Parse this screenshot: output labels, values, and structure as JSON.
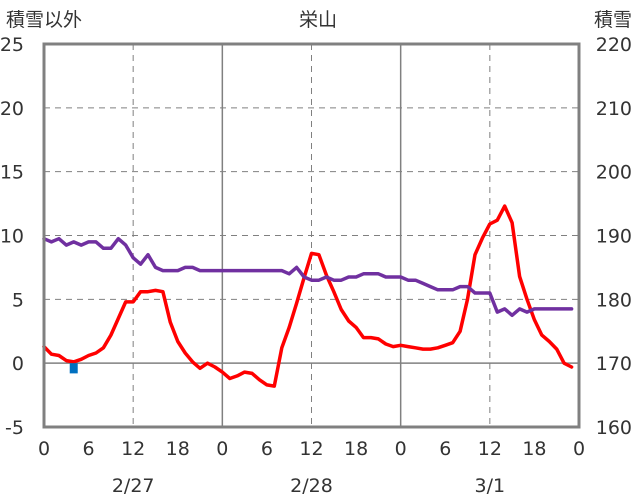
{
  "chart_data": {
    "type": "line",
    "title": "栄山",
    "y_left_label": "積雪以外",
    "y_right_label": "積雪",
    "y_left_range": [
      -5,
      25
    ],
    "y_left_ticks": [
      "25",
      "20",
      "15",
      "10",
      "5",
      "0",
      "-5"
    ],
    "y_right_range": [
      160,
      220
    ],
    "y_right_ticks": [
      "220",
      "210",
      "200",
      "190",
      "180",
      "170",
      "160"
    ],
    "x_range": [
      0,
      72
    ],
    "x_tick_labels": [
      "0",
      "6",
      "12",
      "18",
      "0",
      "6",
      "12",
      "18",
      "0",
      "6",
      "12",
      "18",
      "0"
    ],
    "date_labels": [
      "2/27",
      "2/28",
      "3/1"
    ],
    "grid": true,
    "colors": {
      "temperature": "#ff0000",
      "snow_depth": "#7030a0",
      "precipitation": "#0070c0",
      "frame": "#808080"
    },
    "series": [
      {
        "axis": "left",
        "color": "#ff0000",
        "points": [
          [
            0,
            1.3
          ],
          [
            1,
            0.7
          ],
          [
            2,
            0.6
          ],
          [
            3,
            0.2
          ],
          [
            4,
            0.1
          ],
          [
            5,
            0.3
          ],
          [
            6,
            0.6
          ],
          [
            7,
            0.8
          ],
          [
            8,
            1.2
          ],
          [
            9,
            2.2
          ],
          [
            10,
            3.5
          ],
          [
            11,
            4.8
          ],
          [
            12,
            4.8
          ],
          [
            13,
            5.6
          ],
          [
            14,
            5.6
          ],
          [
            15,
            5.7
          ],
          [
            16,
            5.6
          ],
          [
            17,
            3.2
          ],
          [
            18,
            1.7
          ],
          [
            19,
            0.8
          ],
          [
            20,
            0.1
          ],
          [
            21,
            -0.4
          ],
          [
            22,
            0.0
          ],
          [
            23,
            -0.3
          ],
          [
            24,
            -0.7
          ],
          [
            25,
            -1.2
          ],
          [
            26,
            -1.0
          ],
          [
            27,
            -0.7
          ],
          [
            28,
            -0.8
          ],
          [
            29,
            -1.3
          ],
          [
            30,
            -1.7
          ],
          [
            31,
            -1.8
          ],
          [
            32,
            1.2
          ],
          [
            33,
            2.8
          ],
          [
            34,
            4.7
          ],
          [
            35,
            6.7
          ],
          [
            36,
            8.6
          ],
          [
            37,
            8.5
          ],
          [
            38,
            6.9
          ],
          [
            39,
            5.6
          ],
          [
            40,
            4.2
          ],
          [
            41,
            3.3
          ],
          [
            42,
            2.8
          ],
          [
            43,
            2.0
          ],
          [
            44,
            2.0
          ],
          [
            45,
            1.9
          ],
          [
            46,
            1.5
          ],
          [
            47,
            1.3
          ],
          [
            48,
            1.4
          ],
          [
            49,
            1.3
          ],
          [
            50,
            1.2
          ],
          [
            51,
            1.1
          ],
          [
            52,
            1.1
          ],
          [
            53,
            1.2
          ],
          [
            54,
            1.4
          ],
          [
            55,
            1.6
          ],
          [
            56,
            2.5
          ],
          [
            57,
            5.0
          ],
          [
            58,
            8.5
          ],
          [
            59,
            9.8
          ],
          [
            60,
            10.9
          ],
          [
            61,
            11.2
          ],
          [
            62,
            12.3
          ],
          [
            63,
            11.0
          ],
          [
            64,
            6.8
          ],
          [
            65,
            5.0
          ],
          [
            66,
            3.4
          ],
          [
            67,
            2.2
          ],
          [
            68,
            1.7
          ],
          [
            69,
            1.1
          ],
          [
            70,
            0.0
          ],
          [
            71,
            -0.3
          ]
        ]
      },
      {
        "axis": "right",
        "color": "#7030a0",
        "points": [
          [
            0,
            189.5
          ],
          [
            1,
            189
          ],
          [
            2,
            189.5
          ],
          [
            3,
            188.5
          ],
          [
            4,
            189
          ],
          [
            5,
            188.5
          ],
          [
            6,
            189
          ],
          [
            7,
            189
          ],
          [
            8,
            188
          ],
          [
            9,
            188
          ],
          [
            10,
            189.5
          ],
          [
            11,
            188.5
          ],
          [
            12,
            186.5
          ],
          [
            13,
            185.5
          ],
          [
            14,
            187
          ],
          [
            15,
            185
          ],
          [
            16,
            184.5
          ],
          [
            17,
            184.5
          ],
          [
            18,
            184.5
          ],
          [
            19,
            185
          ],
          [
            20,
            185
          ],
          [
            21,
            184.5
          ],
          [
            22,
            184.5
          ],
          [
            23,
            184.5
          ],
          [
            24,
            184.5
          ],
          [
            25,
            184.5
          ],
          [
            26,
            184.5
          ],
          [
            27,
            184.5
          ],
          [
            28,
            184.5
          ],
          [
            29,
            184.5
          ],
          [
            30,
            184.5
          ],
          [
            31,
            184.5
          ],
          [
            32,
            184.5
          ],
          [
            33,
            184
          ],
          [
            34,
            185
          ],
          [
            35,
            183.5
          ],
          [
            36,
            183
          ],
          [
            37,
            183
          ],
          [
            38,
            183.5
          ],
          [
            39,
            183
          ],
          [
            40,
            183
          ],
          [
            41,
            183.5
          ],
          [
            42,
            183.5
          ],
          [
            43,
            184
          ],
          [
            44,
            184
          ],
          [
            45,
            184
          ],
          [
            46,
            183.5
          ],
          [
            47,
            183.5
          ],
          [
            48,
            183.5
          ],
          [
            49,
            183
          ],
          [
            50,
            183
          ],
          [
            51,
            182.5
          ],
          [
            52,
            182
          ],
          [
            53,
            181.5
          ],
          [
            54,
            181.5
          ],
          [
            55,
            181.5
          ],
          [
            56,
            182
          ],
          [
            57,
            182
          ],
          [
            58,
            181
          ],
          [
            59,
            181
          ],
          [
            60,
            181
          ],
          [
            61,
            178
          ],
          [
            62,
            178.5
          ],
          [
            63,
            177.5
          ],
          [
            64,
            178.5
          ],
          [
            65,
            178
          ],
          [
            66,
            178.5
          ],
          [
            67,
            178.5
          ],
          [
            68,
            178.5
          ],
          [
            69,
            178.5
          ],
          [
            70,
            178.5
          ],
          [
            71,
            178.5
          ]
        ]
      },
      {
        "axis": "left",
        "type": "bar",
        "color": "#0070c0",
        "points": [
          [
            4,
            -0.8
          ]
        ]
      }
    ]
  }
}
